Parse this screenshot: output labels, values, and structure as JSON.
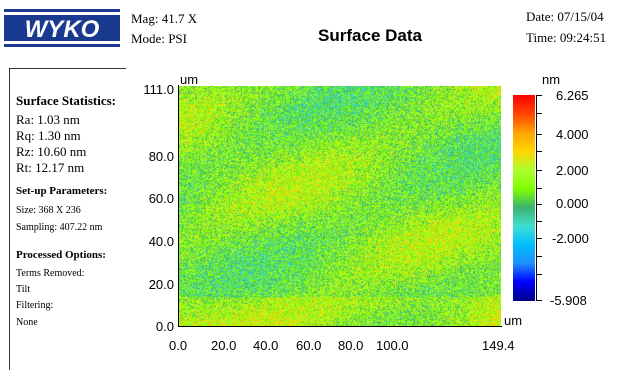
{
  "header": {
    "logo_text": "WYKO",
    "mag_label": "Mag: 41.7 X",
    "mode_label": "Mode: PSI",
    "title": "Surface Data",
    "date_label": "Date:  07/15/04",
    "time_label": "Time:  09:24:51"
  },
  "stats": {
    "title": "Surface Statistics:",
    "ra": "Ra:  1.03 nm",
    "rq": "Rq:  1.30 nm",
    "rz": "Rz:  10.60 nm",
    "rt": "Rt:  12.17 nm"
  },
  "setup": {
    "title": "Set-up Parameters:",
    "size": "Size: 368 X 236",
    "sampling": "Sampling:  407.22 nm"
  },
  "processed": {
    "title": "Processed Options:",
    "terms_label": "Terms Removed:",
    "terms_value": "Tilt",
    "filter_label": "Filtering:",
    "filter_value": "None"
  },
  "chart_data": {
    "type": "heatmap",
    "x_unit": "um",
    "y_unit": "um",
    "z_unit": "nm",
    "x_ticks": [
      "0.0",
      "20.0",
      "40.0",
      "60.0",
      "80.0",
      "100.0",
      "149.4"
    ],
    "y_ticks": [
      "111.0",
      "80.0",
      "60.0",
      "40.0",
      "20.0",
      "0.0"
    ],
    "xlim": [
      0,
      149.4
    ],
    "ylim": [
      0,
      111.0
    ],
    "colorbar_ticks": [
      "6.265",
      "4.000",
      "2.000",
      "0.000",
      "-2.000",
      "-5.908"
    ],
    "zlim": [
      -5.908,
      6.265
    ],
    "colors": [
      "#00008b",
      "#0000ff",
      "#1e90ff",
      "#00bfff",
      "#40e0d0",
      "#3cb371",
      "#7fff00",
      "#adff2f",
      "#ffd700",
      "#ffa500",
      "#ff4500",
      "#ff0000"
    ]
  },
  "corner_unit": "um"
}
